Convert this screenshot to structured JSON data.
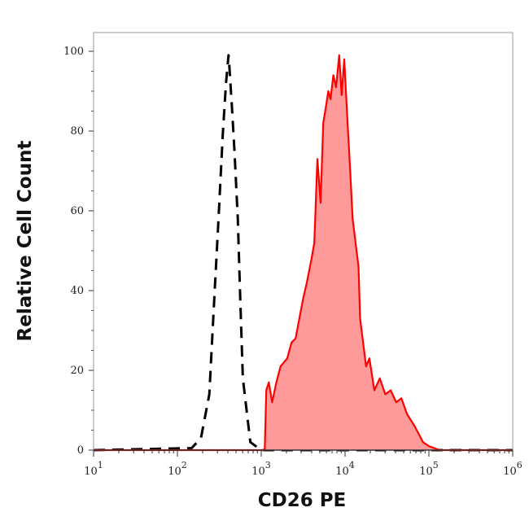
{
  "chart_data": {
    "type": "area",
    "title": "",
    "xlabel": "CD26 PE",
    "ylabel": "Relative Cell Count",
    "x_scale": "log",
    "xlim": [
      10,
      1000000
    ],
    "ylim": [
      0,
      100
    ],
    "x_ticks": [
      10,
      100,
      1000,
      10000,
      100000,
      1000000
    ],
    "x_tick_labels": [
      [
        "10",
        "1"
      ],
      [
        "10",
        "2"
      ],
      [
        "10",
        "3"
      ],
      [
        "10",
        "4"
      ],
      [
        "10",
        "5"
      ],
      [
        "10",
        "6"
      ]
    ],
    "y_ticks": [
      0,
      20,
      40,
      60,
      80,
      100
    ],
    "y_tick_labels": [
      "0",
      "20",
      "40",
      "60",
      "80",
      "100"
    ],
    "grid": false,
    "series": [
      {
        "style": "dashed-line",
        "color": "#000000",
        "x": [
          10,
          148,
          191,
          240,
          275,
          309,
          347,
          380,
          407,
          417,
          447,
          479,
          525,
          562,
          603,
          741,
          1000,
          100000,
          1000000
        ],
        "y": [
          0,
          0.5,
          3,
          14,
          38,
          58,
          79,
          92,
          99,
          96,
          86,
          75,
          58,
          38,
          18,
          2,
          0,
          0,
          0
        ]
      },
      {
        "style": "filled",
        "color": "#ff0000",
        "fill": "#ff9a9a",
        "x": [
          10,
          1100,
          1148,
          1230,
          1350,
          1514,
          1700,
          2042,
          2300,
          2570,
          2850,
          3162,
          3500,
          3981,
          4300,
          4677,
          5100,
          5495,
          5900,
          6310,
          6700,
          7244,
          7800,
          8511,
          9100,
          9772,
          10715,
          11500,
          12303,
          14454,
          15136,
          17783,
          19500,
          22387,
          26000,
          30200,
          35000,
          40738,
          47000,
          54954,
          67608,
          85114,
          100000,
          134896,
          1000000
        ],
        "y": [
          0,
          0,
          15,
          17,
          12,
          17,
          21,
          23,
          27,
          28,
          33,
          38,
          42,
          48,
          52,
          73,
          62,
          82,
          86,
          90,
          88,
          94,
          91,
          99,
          89,
          98,
          82,
          70,
          58,
          46,
          33,
          21,
          23,
          15,
          18,
          14,
          15,
          12,
          13,
          9,
          6,
          2,
          1,
          0,
          0
        ]
      }
    ]
  }
}
